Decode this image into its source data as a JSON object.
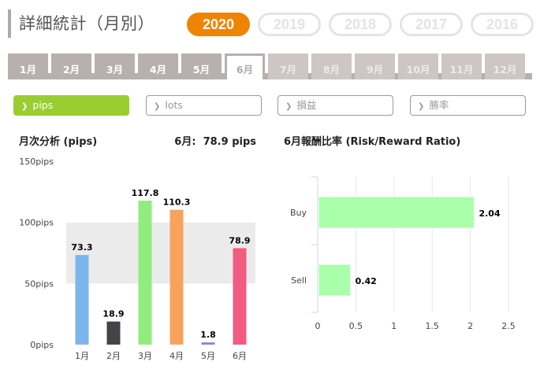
{
  "header": {
    "title": "詳細統計（月別）"
  },
  "years": [
    {
      "label": "2020",
      "active": true
    },
    {
      "label": "2019",
      "active": false
    },
    {
      "label": "2018",
      "active": false
    },
    {
      "label": "2017",
      "active": false
    },
    {
      "label": "2016",
      "active": false
    }
  ],
  "months": [
    {
      "label": "1月",
      "state": "normal"
    },
    {
      "label": "2月",
      "state": "normal"
    },
    {
      "label": "3月",
      "state": "normal"
    },
    {
      "label": "4月",
      "state": "normal"
    },
    {
      "label": "5月",
      "state": "normal"
    },
    {
      "label": "6月",
      "state": "active"
    },
    {
      "label": "7月",
      "state": "disabled"
    },
    {
      "label": "8月",
      "state": "disabled"
    },
    {
      "label": "9月",
      "state": "disabled"
    },
    {
      "label": "10月",
      "state": "disabled"
    },
    {
      "label": "11月",
      "state": "disabled"
    },
    {
      "label": "12月",
      "state": "disabled"
    }
  ],
  "metrics": [
    {
      "label": "pips",
      "active": true,
      "icon": "chevron-right-icon"
    },
    {
      "label": "lots",
      "active": false,
      "icon": "chevron-right-icon"
    },
    {
      "label": "損益",
      "active": false,
      "icon": "chevron-right-icon"
    },
    {
      "label": "勝率",
      "active": false,
      "icon": "chevron-right-icon"
    }
  ],
  "monthly_section": {
    "title": "月次分析 (pips)",
    "current_label": "6月:  78.9 pips"
  },
  "ratio_section": {
    "title": "6月報酬比率 (Risk/Reward Ratio)"
  },
  "chart_data": [
    {
      "type": "bar",
      "title": "",
      "categories": [
        "1月",
        "2月",
        "3月",
        "4月",
        "5月",
        "6月"
      ],
      "values": [
        73.3,
        18.9,
        117.8,
        110.3,
        1.8,
        78.9
      ],
      "value_labels": [
        "73.3",
        "18.9",
        "117.8",
        "110.3",
        "1.8",
        "78.9"
      ],
      "colors": [
        "#7cb5ec",
        "#434348",
        "#90ed7d",
        "#f7a35c",
        "#8085e9",
        "#f15c80"
      ],
      "yticks": [
        "0pips",
        "50pips",
        "100pips",
        "150pips"
      ],
      "ylim": [
        0,
        150
      ],
      "banded_background": true,
      "legend": "none"
    },
    {
      "type": "bar",
      "orientation": "horizontal",
      "title": "",
      "categories": [
        "Buy",
        "Sell"
      ],
      "values": [
        2.04,
        0.42
      ],
      "value_labels": [
        "2.04",
        "0.42"
      ],
      "color": "#aaffaa",
      "xticks": [
        "0",
        "0.5",
        "1",
        "1.5",
        "2",
        "2.5"
      ],
      "xlim": [
        0,
        2.5
      ],
      "grid": true,
      "legend": "none"
    }
  ]
}
